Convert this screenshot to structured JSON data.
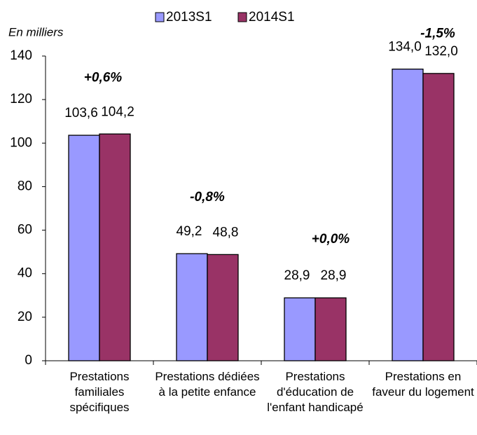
{
  "chart_data": {
    "type": "bar",
    "y_label": "En milliers",
    "categories": [
      "Prestations familiales spécifiques",
      "Prestations dédiées à la petite enfance",
      "Prestations d'éducation de l'enfant handicapé",
      "Prestations en faveur du logement"
    ],
    "series": [
      {
        "name": "2013S1",
        "color": "#9999ff",
        "values": [
          103.6,
          49.2,
          28.9,
          134.0
        ],
        "value_labels": [
          "103,6",
          "49,2",
          "28,9",
          "134,0"
        ]
      },
      {
        "name": "2014S1",
        "color": "#993366",
        "values": [
          104.2,
          48.8,
          28.9,
          132.0
        ],
        "value_labels": [
          "104,2",
          "48,8",
          "28,9",
          "132,0"
        ]
      }
    ],
    "annotations": [
      "+0,6%",
      "-0,8%",
      "+0,0%",
      "-1,5%"
    ],
    "annotation_color": "#ff0000",
    "ylim": [
      0,
      140
    ],
    "yticks": [
      0,
      20,
      40,
      60,
      80,
      100,
      120,
      140
    ],
    "grid": false
  }
}
